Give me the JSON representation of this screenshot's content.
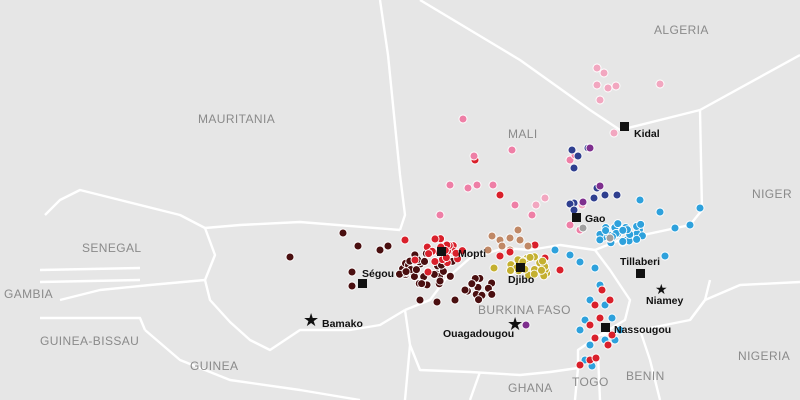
{
  "map": {
    "colors": {
      "land": "#e6e6e6",
      "border": "#ffffff",
      "marker": "#111111",
      "dark_brown": "#4a0f10",
      "red": "#d9202b",
      "pink": "#ee7fa6",
      "light_pink": "#f2a7c0",
      "brown": "#c08866",
      "olive": "#c4b030",
      "blue": "#2ea1dc",
      "navy": "#2f3f8f",
      "purple": "#7e2f8e",
      "grey": "#a0a0a0"
    },
    "countries": [
      {
        "name": "ALGERIA"
      },
      {
        "name": "MAURITANIA"
      },
      {
        "name": "MALI"
      },
      {
        "name": "NIGER"
      },
      {
        "name": "SENEGAL"
      },
      {
        "name": "GAMBIA"
      },
      {
        "name": "GUINEA-BISSAU"
      },
      {
        "name": "GUINEA"
      },
      {
        "name": "BURKINA FASO"
      },
      {
        "name": "GHANA"
      },
      {
        "name": "TOGO"
      },
      {
        "name": "BENIN"
      },
      {
        "name": "NIGERIA"
      }
    ],
    "cities": [
      {
        "name": "Kidal",
        "marker": "square"
      },
      {
        "name": "Gao",
        "marker": "square"
      },
      {
        "name": "Mopti",
        "marker": "square"
      },
      {
        "name": "Ségou",
        "marker": "square"
      },
      {
        "name": "Djibo",
        "marker": "square"
      },
      {
        "name": "Tillaberi",
        "marker": "square"
      },
      {
        "name": "Niamey",
        "marker": "star"
      },
      {
        "name": "Bamako",
        "marker": "star"
      },
      {
        "name": "Ouagadougou",
        "marker": "star"
      },
      {
        "name": "Nassougou",
        "marker": "square"
      }
    ]
  }
}
